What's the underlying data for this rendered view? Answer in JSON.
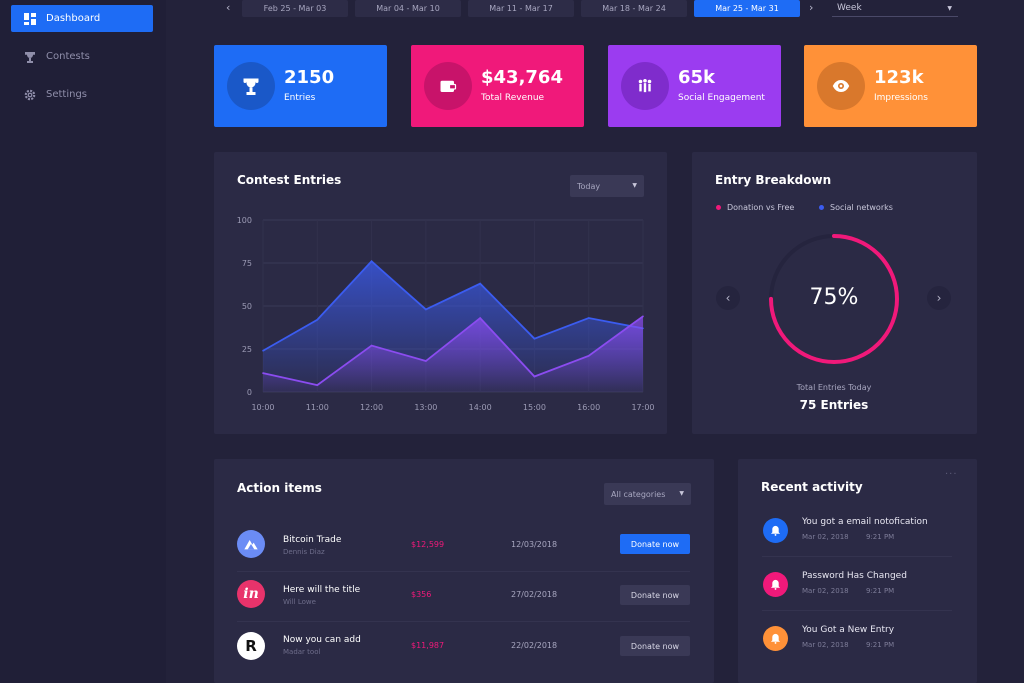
{
  "sidebar": {
    "items": [
      {
        "label": "Dashboard",
        "icon": "dashboard-icon",
        "active": true
      },
      {
        "label": "Contests",
        "icon": "trophy-icon",
        "active": false
      },
      {
        "label": "Settings",
        "icon": "gear-icon",
        "active": false
      }
    ]
  },
  "date_range": {
    "tabs": [
      "Feb 25 - Mar 03",
      "Mar 04 - Mar 10",
      "Mar 11 - Mar 17",
      "Mar 18 - Mar 24",
      "Mar 25 - Mar 31"
    ],
    "active_tab": "Mar 25 - Mar 31",
    "period": "Week"
  },
  "stats": [
    {
      "value": "2150",
      "label": "Entries",
      "icon": "trophy-icon",
      "color": "#1e6cf5"
    },
    {
      "value": "$43,764",
      "label": "Total Revenue",
      "icon": "wallet-icon",
      "color": "#f0197a"
    },
    {
      "value": "65k",
      "label": "Social Engagement",
      "icon": "people-icon",
      "color": "#9b3cf0"
    },
    {
      "value": "123k",
      "label": "Impressions",
      "icon": "eye-icon",
      "color": "#ff9138"
    }
  ],
  "contest_entries": {
    "title": "Contest Entries",
    "filter": "Today"
  },
  "chart_data": {
    "type": "area",
    "x": [
      "10:00",
      "11:00",
      "12:00",
      "13:00",
      "14:00",
      "15:00",
      "16:00",
      "17:00"
    ],
    "y_ticks": [
      0,
      25,
      50,
      75,
      100
    ],
    "ylim": [
      0,
      100
    ],
    "series": [
      {
        "values": [
          24,
          42,
          76,
          48,
          63,
          31,
          43,
          37
        ],
        "color": "#3b5cf0"
      },
      {
        "values": [
          11,
          4,
          27,
          18,
          43,
          9,
          21,
          44
        ],
        "color": "#8b4cf0"
      }
    ],
    "grid": true
  },
  "entry_breakdown": {
    "title": "Entry Breakdown",
    "legend": [
      {
        "label": "Donation vs Free",
        "color": "#f0197a"
      },
      {
        "label": "Social networks",
        "color": "#3b5cf0"
      }
    ],
    "percent_value": 75,
    "percent": "75%",
    "caption": "Total Entries Today",
    "entries": "75 Entries"
  },
  "action_items": {
    "title": "Action items",
    "filter": "All categories",
    "rows": [
      {
        "title": "Bitcoin Trade",
        "subtitle": "Dennis Diaz",
        "amount": "$12,599",
        "date": "12/03/2018",
        "button": "Donate now",
        "primary": true,
        "avatar": "bitcoin-logo-icon",
        "avatar_color": "#6b8cf5"
      },
      {
        "title": "Here will the title",
        "subtitle": "Will Lowe",
        "amount": "$356",
        "date": "27/02/2018",
        "button": "Donate now",
        "primary": false,
        "avatar": "invision-logo-icon",
        "avatar_color": "#e8336b"
      },
      {
        "title": "Now you can add",
        "subtitle": "Madar tool",
        "amount": "$11,987",
        "date": "22/02/2018",
        "button": "Donate now",
        "primary": false,
        "avatar": "r-logo-icon",
        "avatar_color": "#ffffff"
      }
    ]
  },
  "recent_activity": {
    "title": "Recent activity",
    "items": [
      {
        "title": "You got a email notofication",
        "date": "Mar 02, 2018",
        "time": "9:21 PM",
        "icon": "bell-icon",
        "color": "#1e6cf5"
      },
      {
        "title": "Password Has Changed",
        "date": "Mar 02, 2018",
        "time": "9:21 PM",
        "icon": "bell-icon",
        "color": "#f0197a"
      },
      {
        "title": "You Got a New Entry",
        "date": "Mar 02, 2018",
        "time": "9:21 PM",
        "icon": "bell-icon",
        "color": "#ff9138"
      }
    ]
  }
}
